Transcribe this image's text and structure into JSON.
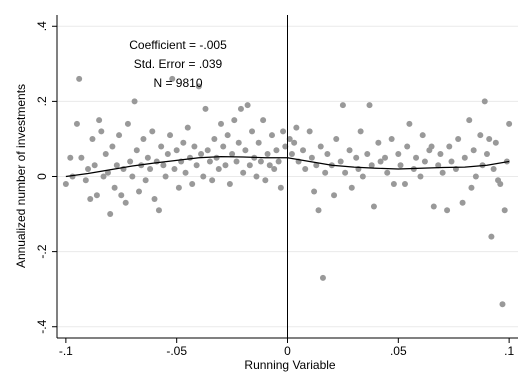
{
  "chart_data": {
    "type": "scatter",
    "x_label": "Running Variable",
    "y_label": "Annualized number of investments",
    "annotations": [
      "Coefficient = -.005",
      "Std. Error = .039",
      "N = 9810"
    ],
    "xlim": [
      -0.104,
      0.104
    ],
    "ylim": [
      -0.43,
      0.43
    ],
    "xticks": [
      {
        "value": -0.1,
        "label": "-.1"
      },
      {
        "value": -0.05,
        "label": "-.05"
      },
      0,
      {
        "value": 0.05,
        "label": ".05"
      },
      {
        "value": 0.1,
        "label": ".1"
      }
    ],
    "yticks": [
      {
        "value": -0.4,
        "label": "-.4"
      },
      {
        "value": -0.2,
        "label": "-.2"
      },
      0,
      {
        "value": 0.2,
        "label": ".2"
      },
      {
        "value": 0.4,
        "label": ".4"
      }
    ],
    "grid": true,
    "vline": 0,
    "series": [
      {
        "type": "scatter",
        "color": "#999999",
        "x": [
          -0.1,
          -0.098,
          -0.097,
          -0.095,
          -0.094,
          -0.093,
          -0.091,
          -0.09,
          -0.089,
          -0.088,
          -0.087,
          -0.086,
          -0.085,
          -0.084,
          -0.083,
          -0.082,
          -0.081,
          -0.08,
          -0.079,
          -0.078,
          -0.077,
          -0.076,
          -0.075,
          -0.074,
          -0.073,
          -0.072,
          -0.071,
          -0.07,
          -0.069,
          -0.068,
          -0.067,
          -0.066,
          -0.065,
          -0.064,
          -0.063,
          -0.062,
          -0.061,
          -0.06,
          -0.059,
          -0.058,
          -0.057,
          -0.056,
          -0.055,
          -0.054,
          -0.053,
          -0.052,
          -0.051,
          -0.05,
          -0.049,
          -0.048,
          -0.047,
          -0.046,
          -0.045,
          -0.044,
          -0.043,
          -0.042,
          -0.041,
          -0.04,
          -0.039,
          -0.038,
          -0.037,
          -0.036,
          -0.035,
          -0.034,
          -0.033,
          -0.032,
          -0.031,
          -0.03,
          -0.029,
          -0.028,
          -0.027,
          -0.026,
          -0.025,
          -0.024,
          -0.023,
          -0.022,
          -0.021,
          -0.02,
          -0.019,
          -0.018,
          -0.017,
          -0.016,
          -0.015,
          -0.014,
          -0.013,
          -0.012,
          -0.011,
          -0.01,
          -0.009,
          -0.008,
          -0.007,
          -0.006,
          -0.005,
          -0.004,
          -0.003,
          -0.002,
          -0.001,
          0.001,
          0.002,
          0.003,
          0.004,
          0.005,
          0.007,
          0.008,
          0.01,
          0.011,
          0.012,
          0.013,
          0.014,
          0.015,
          0.016,
          0.017,
          0.018,
          0.02,
          0.021,
          0.022,
          0.024,
          0.025,
          0.026,
          0.028,
          0.029,
          0.031,
          0.032,
          0.033,
          0.034,
          0.036,
          0.037,
          0.038,
          0.039,
          0.041,
          0.042,
          0.044,
          0.045,
          0.047,
          0.048,
          0.05,
          0.051,
          0.053,
          0.054,
          0.055,
          0.057,
          0.058,
          0.06,
          0.061,
          0.062,
          0.064,
          0.065,
          0.066,
          0.068,
          0.069,
          0.07,
          0.072,
          0.073,
          0.074,
          0.076,
          0.077,
          0.079,
          0.08,
          0.082,
          0.083,
          0.084,
          0.085,
          0.087,
          0.088,
          0.089,
          0.09,
          0.091,
          0.092,
          0.093,
          0.094,
          0.095,
          0.096,
          0.097,
          0.098,
          0.099,
          0.1
        ],
        "values": [
          -0.02,
          0.05,
          0.0,
          0.14,
          0.26,
          0.05,
          -0.01,
          0.02,
          -0.06,
          0.1,
          0.03,
          -0.05,
          0.15,
          0.12,
          0.0,
          0.06,
          0.01,
          -0.1,
          0.08,
          -0.03,
          0.03,
          0.11,
          -0.05,
          0.02,
          -0.07,
          0.14,
          0.04,
          0.0,
          0.2,
          0.07,
          -0.04,
          0.03,
          0.1,
          -0.01,
          0.05,
          0.02,
          0.12,
          -0.06,
          0.04,
          -0.09,
          0.08,
          0.03,
          0.0,
          0.06,
          0.11,
          0.26,
          0.02,
          0.07,
          -0.03,
          0.04,
          0.09,
          0.01,
          0.13,
          0.05,
          -0.02,
          0.08,
          0.03,
          0.24,
          0.06,
          0.0,
          0.18,
          0.07,
          0.04,
          -0.01,
          0.1,
          0.05,
          0.02,
          0.14,
          0.08,
          0.03,
          0.11,
          -0.02,
          0.06,
          0.15,
          0.04,
          0.09,
          0.18,
          0.01,
          0.07,
          0.19,
          0.03,
          0.12,
          0.05,
          0.0,
          0.09,
          0.04,
          0.15,
          -0.01,
          0.06,
          0.03,
          0.11,
          0.02,
          0.07,
          0.04,
          -0.03,
          0.12,
          0.08,
          0.1,
          0.06,
          0.09,
          0.13,
          0.04,
          0.07,
          0.02,
          0.12,
          0.05,
          -0.04,
          0.03,
          -0.09,
          0.08,
          -0.27,
          0.01,
          0.06,
          0.03,
          -0.05,
          0.1,
          0.04,
          0.19,
          0.01,
          0.07,
          -0.03,
          0.05,
          0.02,
          0.12,
          0.0,
          0.06,
          0.19,
          0.03,
          -0.08,
          0.09,
          0.04,
          0.05,
          0.01,
          0.1,
          -0.02,
          0.06,
          0.03,
          -0.02,
          0.08,
          0.14,
          0.02,
          0.05,
          0.0,
          0.11,
          0.04,
          0.07,
          0.08,
          -0.08,
          0.03,
          0.06,
          0.01,
          -0.09,
          0.08,
          0.04,
          0.02,
          0.1,
          -0.07,
          0.05,
          0.15,
          -0.03,
          0.07,
          0.0,
          0.11,
          0.03,
          0.2,
          0.06,
          0.1,
          -0.16,
          0.02,
          0.09,
          -0.01,
          -0.02,
          -0.34,
          -0.09,
          0.04,
          0.14
        ]
      },
      {
        "type": "line",
        "color": "#000000",
        "x": [
          -0.1,
          -0.09,
          -0.08,
          -0.07,
          -0.06,
          -0.05,
          -0.04,
          -0.03,
          -0.02,
          -0.01,
          0
        ],
        "values": [
          0.0,
          0.008,
          0.018,
          0.028,
          0.036,
          0.043,
          0.05,
          0.053,
          0.052,
          0.05,
          0.05
        ]
      },
      {
        "type": "line",
        "color": "#000000",
        "x": [
          0,
          0.01,
          0.02,
          0.03,
          0.04,
          0.05,
          0.06,
          0.07,
          0.08,
          0.09,
          0.1
        ],
        "values": [
          0.05,
          0.04,
          0.03,
          0.025,
          0.022,
          0.02,
          0.022,
          0.024,
          0.025,
          0.03,
          0.04
        ]
      }
    ]
  }
}
